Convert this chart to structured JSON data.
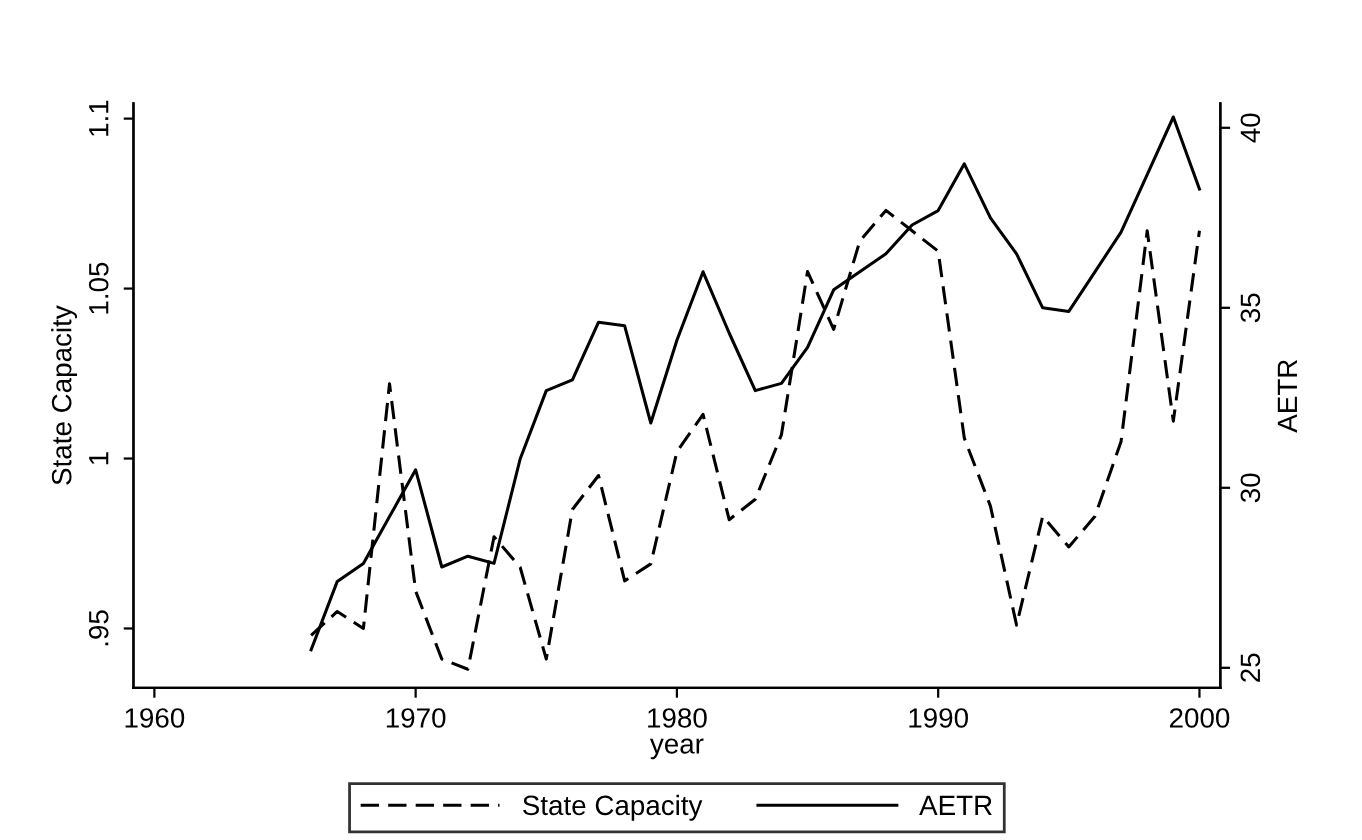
{
  "chart_data": {
    "type": "line",
    "xlabel": "year",
    "ylabel": "State Capacity",
    "y2label": "AETR",
    "x": [
      1966,
      1967,
      1968,
      1969,
      1970,
      1971,
      1972,
      1973,
      1974,
      1975,
      1976,
      1977,
      1978,
      1979,
      1980,
      1981,
      1982,
      1983,
      1984,
      1985,
      1986,
      1987,
      1988,
      1989,
      1990,
      1991,
      1992,
      1993,
      1994,
      1995,
      1996,
      1997,
      1998,
      1999,
      2000
    ],
    "series": [
      {
        "name": "State Capacity",
        "color": "#000000",
        "line_style": "dashed",
        "values": [
          0.948,
          0.955,
          0.95,
          1.022,
          0.961,
          0.941,
          0.938,
          0.977,
          0.968,
          0.941,
          0.985,
          0.995,
          0.964,
          0.969,
          1.002,
          1.013,
          0.982,
          0.988,
          1.007,
          1.055,
          1.038,
          1.064,
          1.073,
          1.067,
          1.061,
          1.006,
          0.986,
          0.951,
          0.983,
          0.974,
          0.983,
          1.005,
          1.067,
          1.011,
          1.067
        ]
      },
      {
        "name": "AETR",
        "color": "#000000",
        "line_style": "solid",
        "axis": "y2",
        "values": [
          25.5,
          27.4,
          27.9,
          29.2,
          30.5,
          27.8,
          28.1,
          27.9,
          30.8,
          32.7,
          33.0,
          34.6,
          34.5,
          31.8,
          34.1,
          36.0,
          34.3,
          32.7,
          32.9,
          33.9,
          35.5,
          36.0,
          36.5,
          37.3,
          37.7,
          39.0,
          37.5,
          36.5,
          35.0,
          34.9,
          36.0,
          37.1,
          38.7,
          40.3,
          38.3
        ]
      }
    ],
    "xlim": [
      1959.2,
      2000.8
    ],
    "xticks": [
      1960,
      1970,
      1980,
      1990,
      2000
    ],
    "ylim": [
      0.9325,
      1.1045
    ],
    "yticks": [
      {
        "value": 0.95,
        "label": ".95"
      },
      1,
      1.05,
      1.1
    ],
    "y2lim": [
      24.44,
      40.68
    ],
    "y2ticks": [
      25,
      30,
      35,
      40
    ],
    "grid": false,
    "legend": "bottom",
    "marker": "none"
  }
}
